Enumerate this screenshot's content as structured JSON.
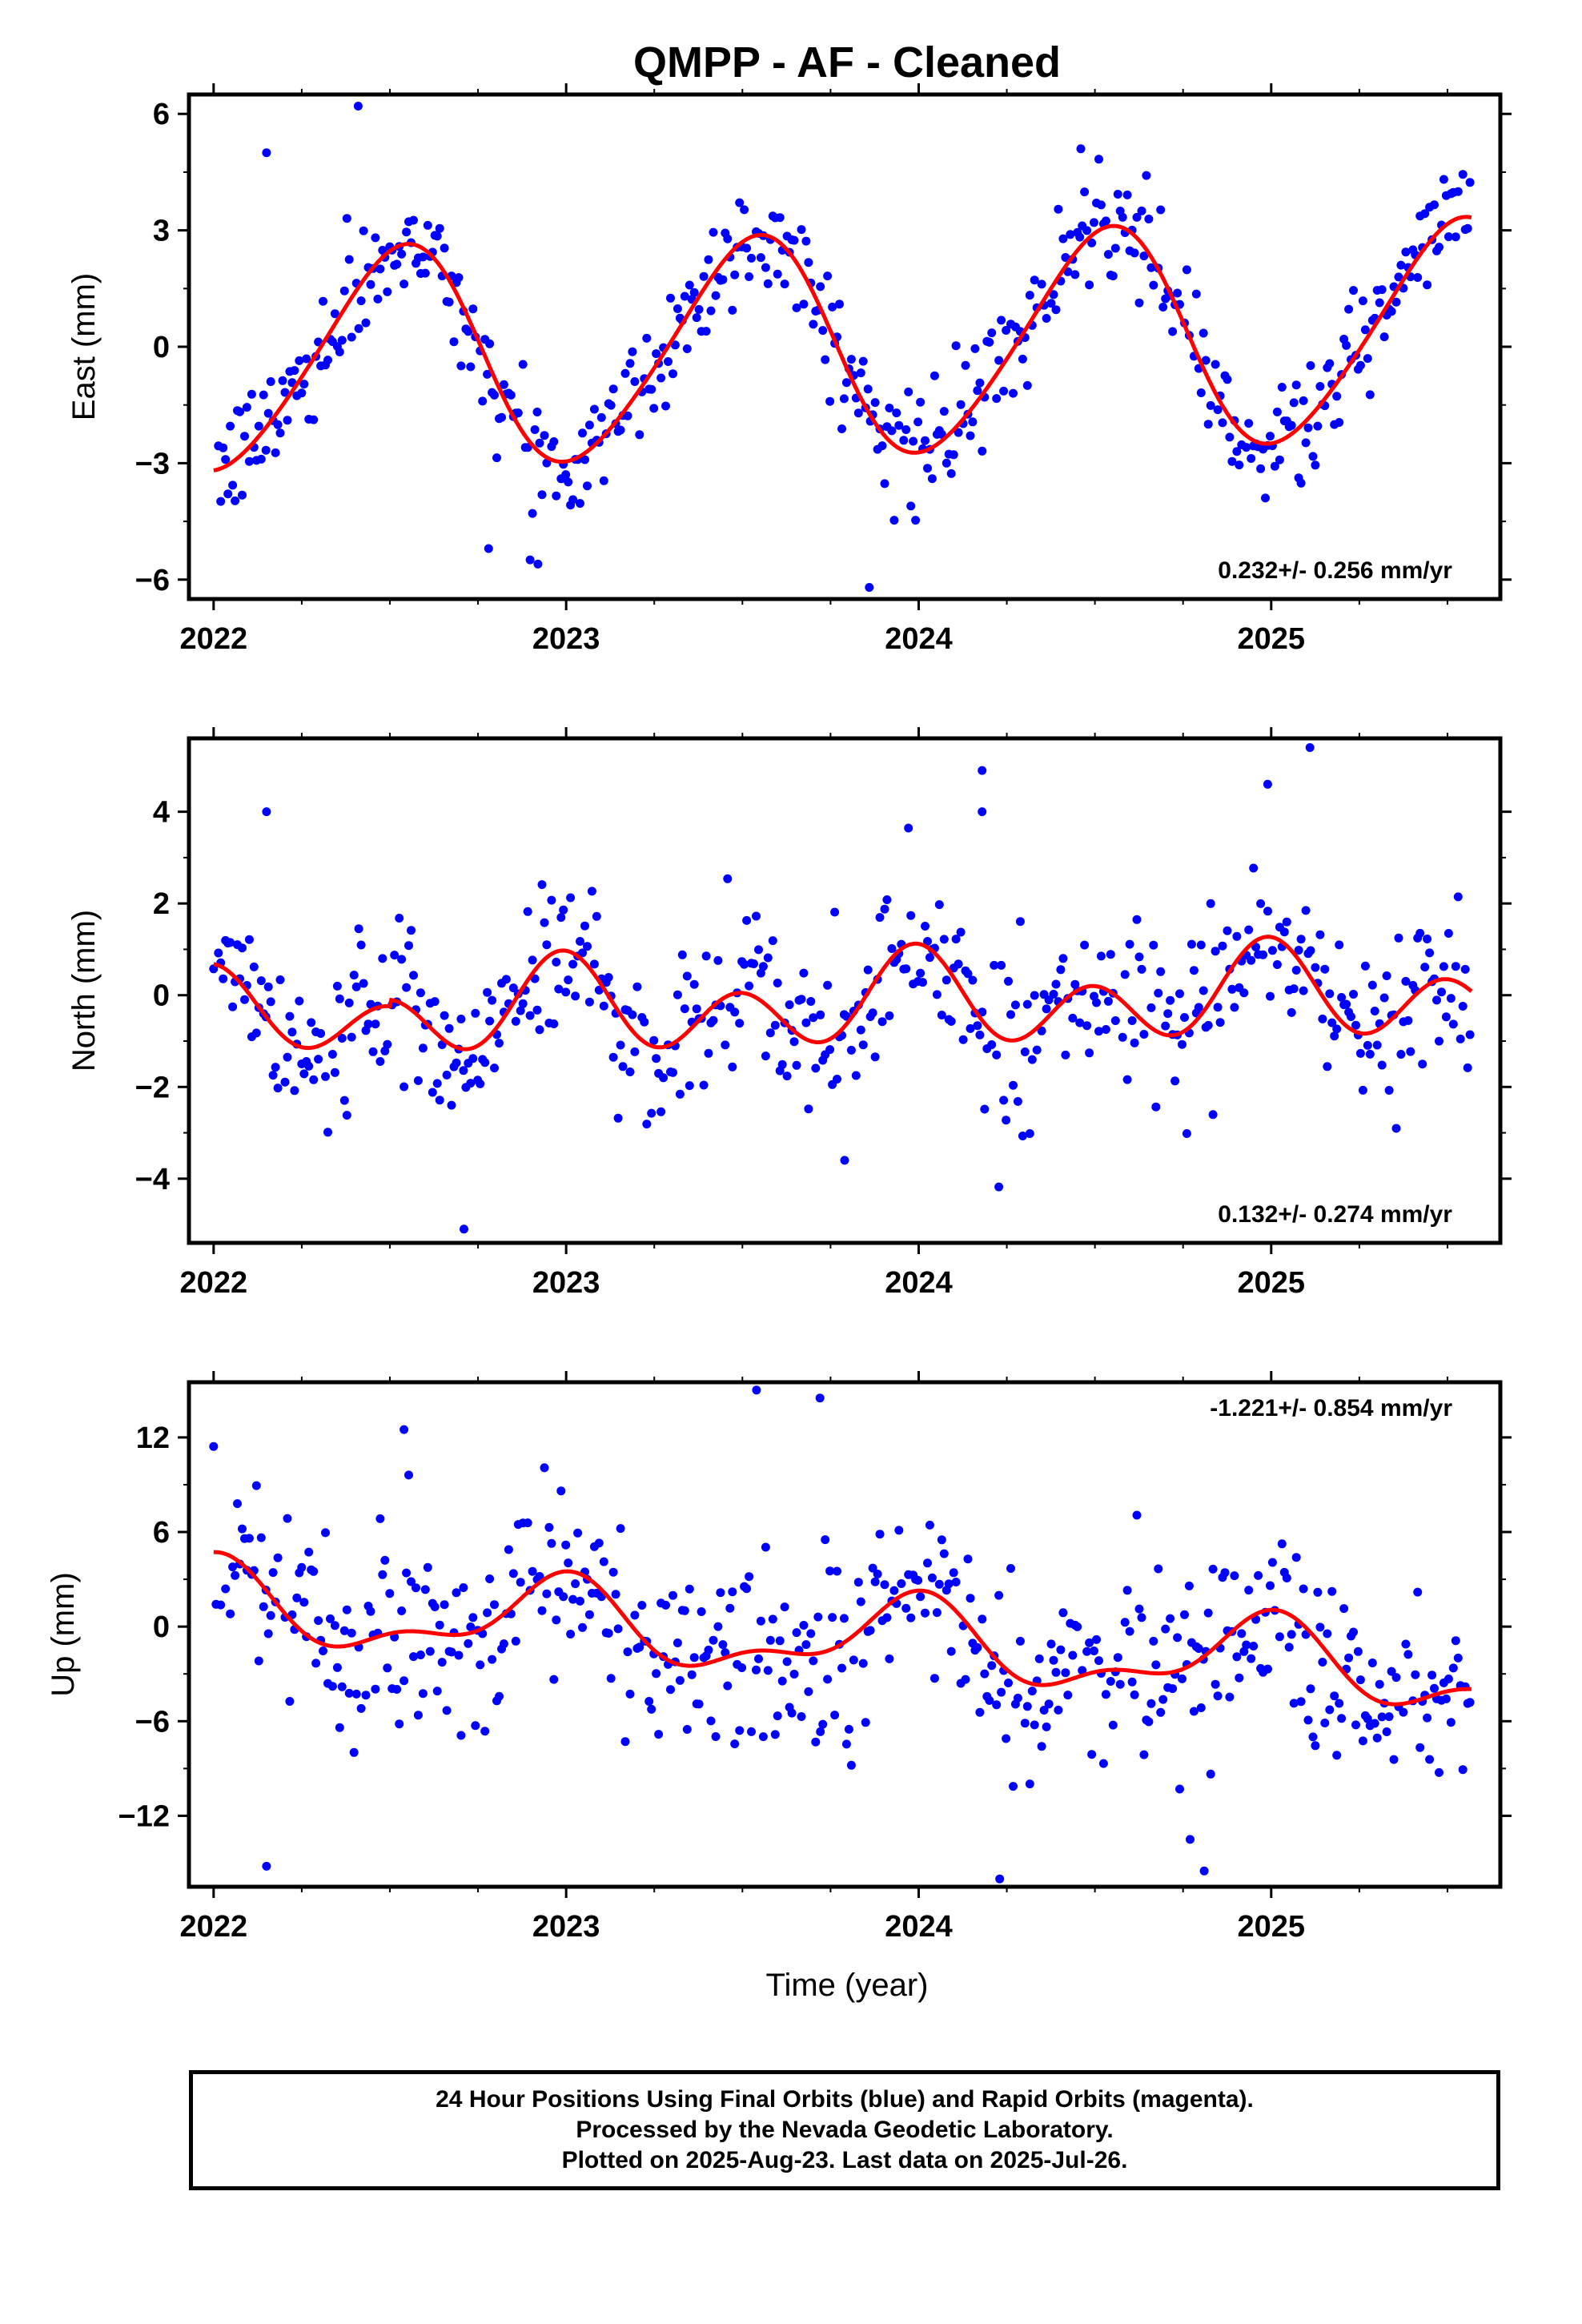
{
  "title": "QMPP  - AF - Cleaned",
  "x_axis_label": "Time (year)",
  "footer": {
    "line1": "24 Hour Positions Using Final Orbits (blue) and Rapid Orbits (magenta).",
    "line2": "Processed by the Nevada Geodetic Laboratory.",
    "line3": "Plotted on 2025-Aug-23. Last data on 2025-Jul-26."
  },
  "colors": {
    "observations": "#0000ff",
    "model": "#ff0000",
    "frame": "#000000"
  },
  "chart_data": [
    {
      "type": "scatter",
      "name": "East",
      "ylabel": "East (mm)",
      "rate_text": "0.232+/- 0.256 mm/yr",
      "xlim": [
        2021.93,
        2025.65
      ],
      "ylim": [
        -6.5,
        6.5
      ],
      "yticks": [
        -6,
        -3,
        0,
        3,
        6
      ],
      "ytick_labels": [
        "−6",
        "−3",
        "0",
        "3",
        "6"
      ],
      "xticks": [
        2022,
        2023,
        2024,
        2025
      ],
      "xtick_labels": [
        "2022",
        "2023",
        "2024",
        "2025"
      ],
      "grid": false,
      "point_data_x": "2022.00 to 2025.57, about 2.7 daily samples per point",
      "model": {
        "description": "red seasonal fit",
        "annual_amplitude": 2.8,
        "semiannual_amplitude": 0.3,
        "rate_mm_per_yr": 0.232
      },
      "scatter_sigma": 0.75,
      "outliers": [
        [
          2022.41,
          6.2
        ],
        [
          2022.15,
          5.0
        ],
        [
          2023.86,
          -6.2
        ],
        [
          2022.92,
          -5.6
        ],
        [
          2022.78,
          -5.2
        ],
        [
          2024.46,
          5.1
        ]
      ]
    },
    {
      "type": "scatter",
      "name": "North",
      "ylabel": "North (mm)",
      "rate_text": "0.132+/- 0.274 mm/yr",
      "xlim": [
        2021.93,
        2025.65
      ],
      "ylim": [
        -5.4,
        5.6
      ],
      "yticks": [
        -4,
        -2,
        0,
        2,
        4
      ],
      "ytick_labels": [
        "−4",
        "−2",
        "0",
        "2",
        "4"
      ],
      "xticks": [
        2022,
        2023,
        2024,
        2025
      ],
      "xtick_labels": [
        "2022",
        "2023",
        "2024",
        "2025"
      ],
      "grid": false,
      "model": {
        "description": "red seasonal fit",
        "annual_amplitude": 0.45,
        "semiannual_amplitude": 0.9,
        "rate_mm_per_yr": 0.132
      },
      "scatter_sigma": 0.85,
      "outliers": [
        [
          2022.15,
          4.0
        ],
        [
          2024.18,
          4.9
        ],
        [
          2025.11,
          5.4
        ],
        [
          2024.99,
          4.6
        ],
        [
          2022.71,
          -5.1
        ],
        [
          2023.79,
          -3.6
        ],
        [
          2024.18,
          4.0
        ]
      ]
    },
    {
      "type": "scatter",
      "name": "Up",
      "ylabel": "Up (mm)",
      "rate_text": "-1.221+/- 0.854 mm/yr",
      "xlim": [
        2021.93,
        2025.65
      ],
      "ylim": [
        -16.5,
        15.5
      ],
      "yticks": [
        -12,
        -6,
        0,
        6,
        12
      ],
      "ytick_labels": [
        "−12",
        "−6",
        "0",
        "6",
        "12"
      ],
      "xticks": [
        2022,
        2023,
        2024,
        2025
      ],
      "xtick_labels": [
        "2022",
        "2023",
        "2024",
        "2025"
      ],
      "grid": false,
      "model": {
        "description": "red seasonal fit",
        "annual_amplitude": 2.3,
        "semiannual_amplitude": 0.8,
        "rate_mm_per_yr": -1.221
      },
      "scatter_sigma": 3.2,
      "outliers": [
        [
          2022.15,
          -15.2
        ],
        [
          2024.23,
          -16.0
        ],
        [
          2024.81,
          -15.5
        ],
        [
          2023.54,
          15.0
        ],
        [
          2023.72,
          14.5
        ],
        [
          2022.54,
          12.5
        ],
        [
          2024.77,
          -13.5
        ]
      ]
    }
  ]
}
